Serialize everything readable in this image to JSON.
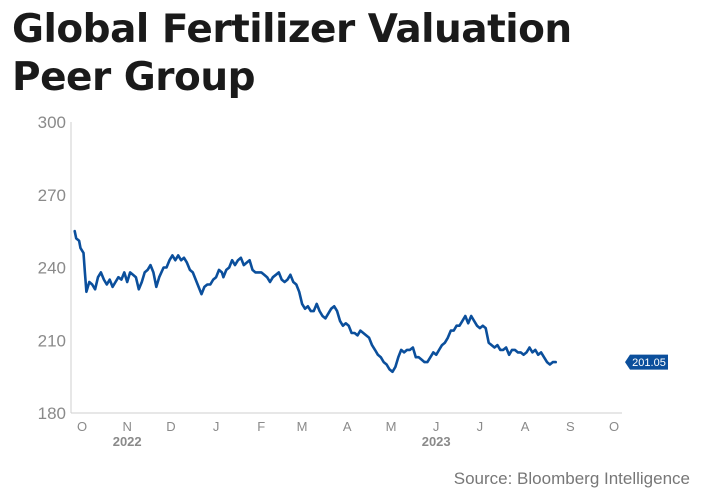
{
  "title_lines": [
    "Global Fertilizer Valuation",
    "Peer Group"
  ],
  "source": "Source: Bloomberg Intelligence",
  "colors": {
    "line": "#0b4f9c",
    "label_bg": "#0b4f9c",
    "axis_text": "#8a8a8a",
    "year_text": "#8a8a8a",
    "axis_line": "#cfcfcf"
  },
  "chart_data": {
    "type": "line",
    "title": "Global Fertilizer Valuation Peer Group",
    "ylim": [
      180,
      300
    ],
    "yticks": [
      180,
      210,
      240,
      270,
      300
    ],
    "xlim": [
      0,
      365
    ],
    "x_ticks": [
      {
        "label": "O",
        "x": 0
      },
      {
        "label": "N",
        "x": 31
      },
      {
        "label": "D",
        "x": 61
      },
      {
        "label": "J",
        "x": 92
      },
      {
        "label": "F",
        "x": 123
      },
      {
        "label": "M",
        "x": 151
      },
      {
        "label": "A",
        "x": 182
      },
      {
        "label": "M",
        "x": 212
      },
      {
        "label": "J",
        "x": 243
      },
      {
        "label": "J",
        "x": 273
      },
      {
        "label": "A",
        "x": 304
      },
      {
        "label": "S",
        "x": 335
      },
      {
        "label": "O",
        "x": 365
      }
    ],
    "year_labels": [
      {
        "label": "2022",
        "x": 31
      },
      {
        "label": "2023",
        "x": 243
      }
    ],
    "end_label": "201.05",
    "grid": false,
    "series": [
      {
        "points": [
          [
            -5,
            255
          ],
          [
            -4,
            252
          ],
          [
            -2,
            251
          ],
          [
            -1,
            248
          ],
          [
            1,
            246
          ],
          [
            2,
            238
          ],
          [
            3,
            230
          ],
          [
            5,
            234
          ],
          [
            7,
            233
          ],
          [
            9,
            231
          ],
          [
            11,
            236
          ],
          [
            13,
            238
          ],
          [
            15,
            235
          ],
          [
            17,
            233
          ],
          [
            19,
            235
          ],
          [
            21,
            232
          ],
          [
            23,
            234
          ],
          [
            25,
            236
          ],
          [
            27,
            235
          ],
          [
            29,
            238
          ],
          [
            31,
            234
          ],
          [
            33,
            238
          ],
          [
            35,
            237
          ],
          [
            37,
            236
          ],
          [
            39,
            231
          ],
          [
            41,
            234
          ],
          [
            43,
            238
          ],
          [
            45,
            239
          ],
          [
            47,
            241
          ],
          [
            49,
            238
          ],
          [
            51,
            232
          ],
          [
            53,
            236
          ],
          [
            56,
            240
          ],
          [
            58,
            240
          ],
          [
            60,
            243
          ],
          [
            62,
            245
          ],
          [
            64,
            243
          ],
          [
            66,
            245
          ],
          [
            68,
            243
          ],
          [
            70,
            244
          ],
          [
            72,
            242
          ],
          [
            74,
            239
          ],
          [
            76,
            238
          ],
          [
            78,
            235
          ],
          [
            80,
            232
          ],
          [
            82,
            229
          ],
          [
            84,
            232
          ],
          [
            86,
            233
          ],
          [
            88,
            233
          ],
          [
            90,
            235
          ],
          [
            92,
            236
          ],
          [
            94,
            239
          ],
          [
            96,
            238
          ],
          [
            97,
            236
          ],
          [
            99,
            239
          ],
          [
            101,
            240
          ],
          [
            103,
            243
          ],
          [
            105,
            241
          ],
          [
            107,
            243
          ],
          [
            109,
            244
          ],
          [
            111,
            241
          ],
          [
            113,
            242
          ],
          [
            115,
            243
          ],
          [
            117,
            239
          ],
          [
            119,
            238
          ],
          [
            121,
            238
          ],
          [
            123,
            238
          ],
          [
            125,
            237
          ],
          [
            127,
            236
          ],
          [
            129,
            234
          ],
          [
            131,
            236
          ],
          [
            133,
            237
          ],
          [
            135,
            238
          ],
          [
            137,
            235
          ],
          [
            139,
            234
          ],
          [
            141,
            235
          ],
          [
            143,
            237
          ],
          [
            145,
            234
          ],
          [
            147,
            233
          ],
          [
            149,
            230
          ],
          [
            151,
            225
          ],
          [
            153,
            223
          ],
          [
            155,
            224
          ],
          [
            157,
            222
          ],
          [
            159,
            222
          ],
          [
            161,
            225
          ],
          [
            163,
            222
          ],
          [
            165,
            220
          ],
          [
            167,
            219
          ],
          [
            169,
            221
          ],
          [
            171,
            223
          ],
          [
            173,
            224
          ],
          [
            175,
            222
          ],
          [
            177,
            218
          ],
          [
            179,
            216
          ],
          [
            181,
            217
          ],
          [
            183,
            216
          ],
          [
            185,
            213
          ],
          [
            187,
            213
          ],
          [
            189,
            212
          ],
          [
            191,
            214
          ],
          [
            193,
            213
          ],
          [
            195,
            212
          ],
          [
            197,
            211
          ],
          [
            199,
            208
          ],
          [
            201,
            206
          ],
          [
            203,
            204
          ],
          [
            205,
            203
          ],
          [
            207,
            201
          ],
          [
            209,
            200
          ],
          [
            211,
            198
          ],
          [
            213,
            197
          ],
          [
            215,
            199
          ],
          [
            217,
            203
          ],
          [
            219,
            206
          ],
          [
            221,
            205
          ],
          [
            223,
            206
          ],
          [
            225,
            206
          ],
          [
            227,
            207
          ],
          [
            229,
            203
          ],
          [
            231,
            203
          ],
          [
            233,
            202
          ],
          [
            235,
            201
          ],
          [
            237,
            201
          ],
          [
            239,
            203
          ],
          [
            241,
            205
          ],
          [
            243,
            204
          ],
          [
            245,
            206
          ],
          [
            247,
            208
          ],
          [
            249,
            209
          ],
          [
            251,
            211
          ],
          [
            253,
            214
          ],
          [
            255,
            214
          ],
          [
            257,
            216
          ],
          [
            259,
            216
          ],
          [
            261,
            218
          ],
          [
            263,
            220
          ],
          [
            265,
            217
          ],
          [
            267,
            220
          ],
          [
            269,
            218
          ],
          [
            271,
            216
          ],
          [
            273,
            215
          ],
          [
            275,
            216
          ],
          [
            277,
            215
          ],
          [
            279,
            209
          ],
          [
            281,
            208
          ],
          [
            283,
            207
          ],
          [
            285,
            208
          ],
          [
            287,
            206
          ],
          [
            289,
            206
          ],
          [
            291,
            207
          ],
          [
            293,
            204
          ],
          [
            295,
            206
          ],
          [
            297,
            206
          ],
          [
            299,
            205
          ],
          [
            301,
            205
          ],
          [
            303,
            204
          ],
          [
            305,
            205
          ],
          [
            307,
            207
          ],
          [
            309,
            205
          ],
          [
            311,
            206
          ],
          [
            313,
            204
          ],
          [
            315,
            205
          ],
          [
            317,
            203
          ],
          [
            319,
            201
          ],
          [
            321,
            200
          ],
          [
            323,
            201
          ],
          [
            325,
            201
          ]
        ]
      }
    ]
  }
}
